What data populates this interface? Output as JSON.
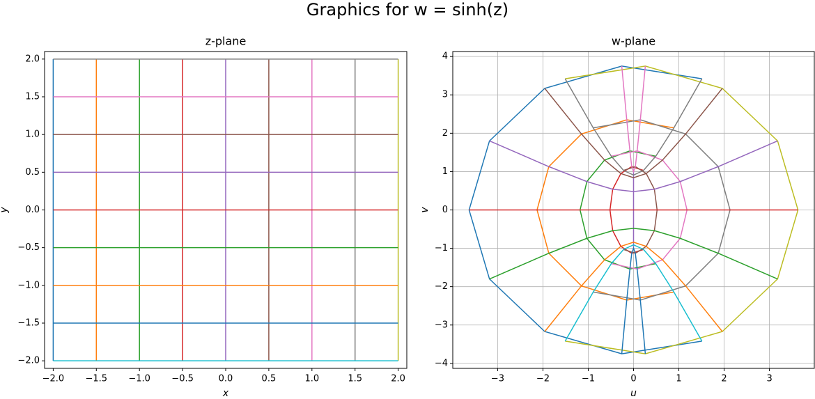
{
  "title": "Graphics for w = sinh(z)",
  "chart_data": [
    {
      "type": "line",
      "title": "z-plane",
      "x_label": "x",
      "y_label": "y",
      "grid": false,
      "xlim": [
        -2.1,
        2.1
      ],
      "ylim": [
        -2.1,
        2.1
      ],
      "xticks": [
        {
          "value": -2,
          "label": "−2.0"
        },
        {
          "value": -1.5,
          "label": "−1.5"
        },
        {
          "value": -1,
          "label": "−1.0"
        },
        {
          "value": -0.5,
          "label": "−0.5"
        },
        {
          "value": 0,
          "label": "0.0"
        },
        {
          "value": 0.5,
          "label": "0.5"
        },
        {
          "value": 1,
          "label": "1.0"
        },
        {
          "value": 1.5,
          "label": "1.5"
        },
        {
          "value": 2,
          "label": "2.0"
        }
      ],
      "yticks": [
        {
          "value": -2,
          "label": "−2.0"
        },
        {
          "value": -1.5,
          "label": "−1.5"
        },
        {
          "value": -1,
          "label": "−1.0"
        },
        {
          "value": -0.5,
          "label": "−0.5"
        },
        {
          "value": 0,
          "label": "0.0"
        },
        {
          "value": 0.5,
          "label": "0.5"
        },
        {
          "value": 1,
          "label": "1.0"
        },
        {
          "value": 1.5,
          "label": "1.5"
        },
        {
          "value": 2,
          "label": "2.0"
        }
      ],
      "series": [
        {
          "color": "#1f77b4",
          "x": [
            -2,
            -2,
            -2,
            -2,
            -2,
            -2,
            -2,
            -2,
            -2
          ],
          "values": [
            -2,
            -1.5,
            -1,
            -0.5,
            0,
            0.5,
            1,
            1.5,
            2
          ]
        },
        {
          "color": "#ff7f0e",
          "x": [
            -1.5,
            -1.5,
            -1.5,
            -1.5,
            -1.5,
            -1.5,
            -1.5,
            -1.5,
            -1.5
          ],
          "values": [
            -2,
            -1.5,
            -1,
            -0.5,
            0,
            0.5,
            1,
            1.5,
            2
          ]
        },
        {
          "color": "#2ca02c",
          "x": [
            -1,
            -1,
            -1,
            -1,
            -1,
            -1,
            -1,
            -1,
            -1
          ],
          "values": [
            -2,
            -1.5,
            -1,
            -0.5,
            0,
            0.5,
            1,
            1.5,
            2
          ]
        },
        {
          "color": "#d62728",
          "x": [
            -0.5,
            -0.5,
            -0.5,
            -0.5,
            -0.5,
            -0.5,
            -0.5,
            -0.5,
            -0.5
          ],
          "values": [
            -2,
            -1.5,
            -1,
            -0.5,
            0,
            0.5,
            1,
            1.5,
            2
          ]
        },
        {
          "color": "#9467bd",
          "x": [
            0,
            0,
            0,
            0,
            0,
            0,
            0,
            0,
            0
          ],
          "values": [
            -2,
            -1.5,
            -1,
            -0.5,
            0,
            0.5,
            1,
            1.5,
            2
          ]
        },
        {
          "color": "#8c564b",
          "x": [
            0.5,
            0.5,
            0.5,
            0.5,
            0.5,
            0.5,
            0.5,
            0.5,
            0.5
          ],
          "values": [
            -2,
            -1.5,
            -1,
            -0.5,
            0,
            0.5,
            1,
            1.5,
            2
          ]
        },
        {
          "color": "#e377c2",
          "x": [
            1,
            1,
            1,
            1,
            1,
            1,
            1,
            1,
            1
          ],
          "values": [
            -2,
            -1.5,
            -1,
            -0.5,
            0,
            0.5,
            1,
            1.5,
            2
          ]
        },
        {
          "color": "#7f7f7f",
          "x": [
            1.5,
            1.5,
            1.5,
            1.5,
            1.5,
            1.5,
            1.5,
            1.5,
            1.5
          ],
          "values": [
            -2,
            -1.5,
            -1,
            -0.5,
            0,
            0.5,
            1,
            1.5,
            2
          ]
        },
        {
          "color": "#bcbd22",
          "x": [
            2,
            2,
            2,
            2,
            2,
            2,
            2,
            2,
            2
          ],
          "values": [
            -2,
            -1.5,
            -1,
            -0.5,
            0,
            0.5,
            1,
            1.5,
            2
          ]
        },
        {
          "color": "#17becf",
          "x": [
            -2,
            -1.5,
            -1,
            -0.5,
            0,
            0.5,
            1,
            1.5,
            2
          ],
          "values": [
            -2,
            -2,
            -2,
            -2,
            -2,
            -2,
            -2,
            -2,
            -2
          ]
        },
        {
          "color": "#1f77b4",
          "x": [
            -2,
            -1.5,
            -1,
            -0.5,
            0,
            0.5,
            1,
            1.5,
            2
          ],
          "values": [
            -1.5,
            -1.5,
            -1.5,
            -1.5,
            -1.5,
            -1.5,
            -1.5,
            -1.5,
            -1.5
          ]
        },
        {
          "color": "#ff7f0e",
          "x": [
            -2,
            -1.5,
            -1,
            -0.5,
            0,
            0.5,
            1,
            1.5,
            2
          ],
          "values": [
            -1,
            -1,
            -1,
            -1,
            -1,
            -1,
            -1,
            -1,
            -1
          ]
        },
        {
          "color": "#2ca02c",
          "x": [
            -2,
            -1.5,
            -1,
            -0.5,
            0,
            0.5,
            1,
            1.5,
            2
          ],
          "values": [
            -0.5,
            -0.5,
            -0.5,
            -0.5,
            -0.5,
            -0.5,
            -0.5,
            -0.5,
            -0.5
          ]
        },
        {
          "color": "#d62728",
          "x": [
            -2,
            -1.5,
            -1,
            -0.5,
            0,
            0.5,
            1,
            1.5,
            2
          ],
          "values": [
            0,
            0,
            0,
            0,
            0,
            0,
            0,
            0,
            0
          ]
        },
        {
          "color": "#9467bd",
          "x": [
            -2,
            -1.5,
            -1,
            -0.5,
            0,
            0.5,
            1,
            1.5,
            2
          ],
          "values": [
            0.5,
            0.5,
            0.5,
            0.5,
            0.5,
            0.5,
            0.5,
            0.5,
            0.5
          ]
        },
        {
          "color": "#8c564b",
          "x": [
            -2,
            -1.5,
            -1,
            -0.5,
            0,
            0.5,
            1,
            1.5,
            2
          ],
          "values": [
            1,
            1,
            1,
            1,
            1,
            1,
            1,
            1,
            1
          ]
        },
        {
          "color": "#e377c2",
          "x": [
            -2,
            -1.5,
            -1,
            -0.5,
            0,
            0.5,
            1,
            1.5,
            2
          ],
          "values": [
            1.5,
            1.5,
            1.5,
            1.5,
            1.5,
            1.5,
            1.5,
            1.5,
            1.5
          ]
        },
        {
          "color": "#7f7f7f",
          "x": [
            -2,
            -1.5,
            -1,
            -0.5,
            0,
            0.5,
            1,
            1.5,
            2
          ],
          "values": [
            2,
            2,
            2,
            2,
            2,
            2,
            2,
            2,
            2
          ]
        }
      ]
    },
    {
      "type": "line",
      "title": "w-plane",
      "x_label": "u",
      "y_label": "v",
      "grid": true,
      "xlim": [
        -3.99,
        3.99
      ],
      "ylim": [
        -4.13,
        4.13
      ],
      "xticks": [
        {
          "value": -3,
          "label": "−3"
        },
        {
          "value": -2,
          "label": "−2"
        },
        {
          "value": -1,
          "label": "−1"
        },
        0,
        1,
        2,
        3
      ],
      "yticks": [
        {
          "value": -4,
          "label": "−4"
        },
        {
          "value": -3,
          "label": "−3"
        },
        {
          "value": -2,
          "label": "−2"
        },
        {
          "value": -1,
          "label": "−1"
        },
        0,
        1,
        2,
        3,
        4
      ],
      "series": [
        {
          "color": "#1f77b4",
          "x": [
            1.51,
            -0.26,
            -1.96,
            -3.18,
            -3.63,
            -3.18,
            -1.96,
            -0.26,
            1.51
          ],
          "values": [
            -3.42,
            -3.75,
            -3.17,
            -1.8,
            0,
            1.8,
            3.17,
            3.75,
            3.42
          ]
        },
        {
          "color": "#ff7f0e",
          "x": [
            0.89,
            -0.15,
            -1.15,
            -1.87,
            -2.13,
            -1.87,
            -1.15,
            -0.15,
            0.89
          ],
          "values": [
            -2.14,
            -2.35,
            -1.98,
            -1.13,
            0,
            1.13,
            1.98,
            2.35,
            2.14
          ]
        },
        {
          "color": "#2ca02c",
          "x": [
            0.49,
            -0.08,
            -0.64,
            -1.03,
            -1.18,
            -1.03,
            -0.64,
            -0.08,
            0.49
          ],
          "values": [
            -1.4,
            -1.54,
            -1.3,
            -0.74,
            0,
            0.74,
            1.3,
            1.54,
            1.4
          ]
        },
        {
          "color": "#d62728",
          "x": [
            0.22,
            -0.04,
            -0.28,
            -0.46,
            -0.52,
            -0.46,
            -0.28,
            -0.04,
            0.22
          ],
          "values": [
            -1.03,
            -1.13,
            -0.95,
            -0.54,
            0,
            0.54,
            0.95,
            1.13,
            1.03
          ]
        },
        {
          "color": "#9467bd",
          "x": [
            0,
            0,
            0,
            0,
            0,
            0,
            0,
            0,
            0
          ],
          "values": [
            -0.91,
            -1,
            -0.84,
            -0.48,
            0,
            0.48,
            0.84,
            1,
            0.91
          ]
        },
        {
          "color": "#8c564b",
          "x": [
            -0.22,
            0.04,
            0.28,
            0.46,
            0.52,
            0.46,
            0.28,
            0.04,
            -0.22
          ],
          "values": [
            -1.03,
            -1.13,
            -0.95,
            -0.54,
            0,
            0.54,
            0.95,
            1.13,
            1.03
          ]
        },
        {
          "color": "#e377c2",
          "x": [
            -0.49,
            0.08,
            0.64,
            1.03,
            1.18,
            1.03,
            0.64,
            0.08,
            -0.49
          ],
          "values": [
            -1.4,
            -1.54,
            -1.3,
            -0.74,
            0,
            0.74,
            1.3,
            1.54,
            1.4
          ]
        },
        {
          "color": "#7f7f7f",
          "x": [
            -0.89,
            0.15,
            1.15,
            1.87,
            2.13,
            1.87,
            1.15,
            0.15,
            -0.89
          ],
          "values": [
            -2.14,
            -2.35,
            -1.98,
            -1.13,
            0,
            1.13,
            1.98,
            2.35,
            2.14
          ]
        },
        {
          "color": "#bcbd22",
          "x": [
            -1.51,
            0.26,
            1.96,
            3.18,
            3.63,
            3.18,
            1.96,
            0.26,
            -1.51
          ],
          "values": [
            -3.42,
            -3.75,
            -3.17,
            -1.8,
            0,
            1.8,
            3.17,
            3.75,
            3.42
          ]
        },
        {
          "color": "#17becf",
          "x": [
            1.51,
            0.89,
            0.49,
            0.22,
            0,
            -0.22,
            -0.49,
            -0.89,
            -1.51
          ],
          "values": [
            -3.42,
            -2.14,
            -1.4,
            -1.03,
            -0.91,
            -1.03,
            -1.4,
            -2.14,
            -3.42
          ]
        },
        {
          "color": "#1f77b4",
          "x": [
            -0.26,
            -0.15,
            -0.08,
            -0.04,
            0,
            0.04,
            0.08,
            0.15,
            0.26
          ],
          "values": [
            -3.75,
            -2.35,
            -1.54,
            -1.13,
            -1,
            -1.13,
            -1.54,
            -2.35,
            -3.75
          ]
        },
        {
          "color": "#ff7f0e",
          "x": [
            -1.96,
            -1.15,
            -0.64,
            -0.28,
            0,
            0.28,
            0.64,
            1.15,
            1.96
          ],
          "values": [
            -3.17,
            -1.98,
            -1.3,
            -0.95,
            -0.84,
            -0.95,
            -1.3,
            -1.98,
            -3.17
          ]
        },
        {
          "color": "#2ca02c",
          "x": [
            -3.18,
            -1.87,
            -1.03,
            -0.46,
            0,
            0.46,
            1.03,
            1.87,
            3.18
          ],
          "values": [
            -1.8,
            -1.13,
            -0.74,
            -0.54,
            -0.48,
            -0.54,
            -0.74,
            -1.13,
            -1.8
          ]
        },
        {
          "color": "#d62728",
          "x": [
            -3.63,
            -2.13,
            -1.18,
            -0.52,
            0,
            0.52,
            1.18,
            2.13,
            3.63
          ],
          "values": [
            0,
            0,
            0,
            0,
            0,
            0,
            0,
            0,
            0
          ]
        },
        {
          "color": "#9467bd",
          "x": [
            -3.18,
            -1.87,
            -1.03,
            -0.46,
            0,
            0.46,
            1.03,
            1.87,
            3.18
          ],
          "values": [
            1.8,
            1.13,
            0.74,
            0.54,
            0.48,
            0.54,
            0.74,
            1.13,
            1.8
          ]
        },
        {
          "color": "#8c564b",
          "x": [
            -1.96,
            -1.15,
            -0.64,
            -0.28,
            0,
            0.28,
            0.64,
            1.15,
            1.96
          ],
          "values": [
            3.17,
            1.98,
            1.3,
            0.95,
            0.84,
            0.95,
            1.3,
            1.98,
            3.17
          ]
        },
        {
          "color": "#e377c2",
          "x": [
            -0.26,
            -0.15,
            -0.08,
            -0.04,
            0,
            0.04,
            0.08,
            0.15,
            0.26
          ],
          "values": [
            3.75,
            2.35,
            1.54,
            1.13,
            1,
            1.13,
            1.54,
            2.35,
            3.75
          ]
        },
        {
          "color": "#7f7f7f",
          "x": [
            1.51,
            0.89,
            0.49,
            0.22,
            0,
            -0.22,
            -0.49,
            -0.89,
            -1.51
          ],
          "values": [
            3.42,
            2.14,
            1.4,
            1.03,
            0.91,
            1.03,
            1.4,
            2.14,
            3.42
          ]
        }
      ]
    }
  ]
}
